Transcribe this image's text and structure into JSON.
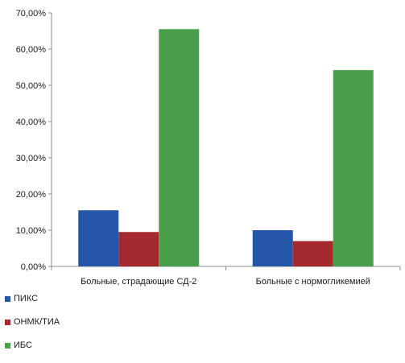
{
  "chart_data": {
    "type": "bar",
    "categories": [
      "Больные, страдающие СД-2",
      "Больные с нормогликемией"
    ],
    "series": [
      {
        "name": "ПИКС",
        "values": [
          15.5,
          10.0
        ],
        "color": "#2457a8"
      },
      {
        "name": "ОНМК/ТИА",
        "values": [
          9.5,
          7.0
        ],
        "color": "#a52a2f"
      },
      {
        "name": "ИБС",
        "values": [
          65.5,
          54.2
        ],
        "color": "#4aa04a"
      }
    ],
    "y_ticks": [
      "0,00%",
      "10,00%",
      "20,00%",
      "30,00%",
      "40,00%",
      "50,00%",
      "60,00%",
      "70,00%"
    ],
    "ylim": [
      0,
      70
    ],
    "grid": false,
    "legend_position": "bottom-left"
  }
}
